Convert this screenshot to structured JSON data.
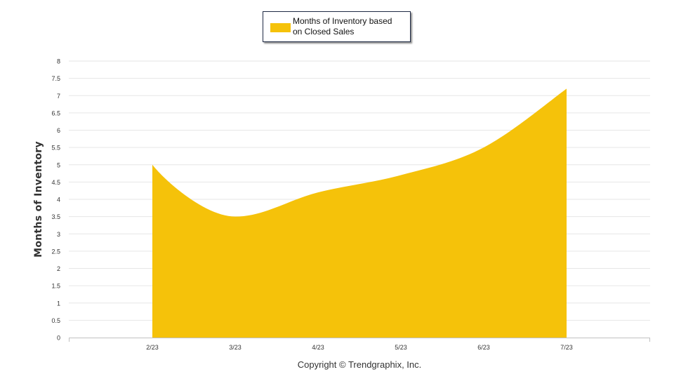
{
  "chart_data": {
    "type": "area",
    "categories": [
      "2/23",
      "3/23",
      "4/23",
      "5/23",
      "6/23",
      "7/23"
    ],
    "series": [
      {
        "name": "Months of Inventory based on Closed Sales",
        "values": [
          5.0,
          3.5,
          4.2,
          4.7,
          5.5,
          7.2
        ],
        "color": "#f5c20a"
      }
    ],
    "ylabel": "Months of Inventory",
    "ylim": [
      0,
      8
    ],
    "yticks": [
      "0",
      "0.5",
      "1",
      "1.5",
      "2",
      "2.5",
      "3",
      "3.5",
      "4",
      "4.5",
      "5",
      "5.5",
      "6",
      "6.5",
      "7",
      "7.5",
      "8"
    ],
    "grid": true,
    "legend_position": "top-center"
  },
  "legend": {
    "line1": "Months of Inventory based",
    "line2": "on Closed Sales"
  },
  "footer": {
    "copyright": "Copyright © Trendgraphix, Inc."
  },
  "colors": {
    "area": "#f5c20a",
    "grid": "#e6e6e6",
    "axis": "#c0c0c0",
    "text": "#333333"
  }
}
